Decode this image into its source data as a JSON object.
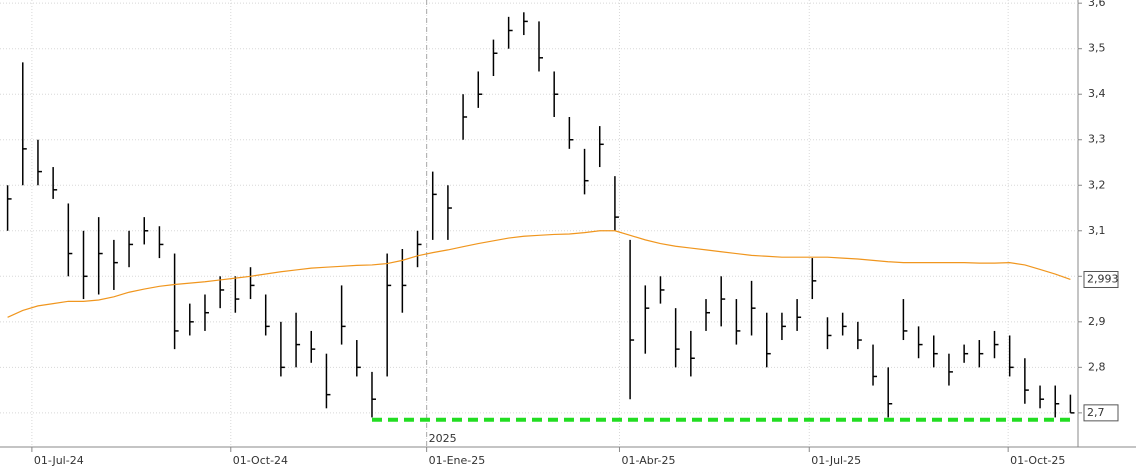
{
  "chart_data": {
    "type": "ohlc",
    "color": "#000000",
    "categories": [
      null,
      null,
      null,
      null,
      null,
      null,
      null,
      null,
      null,
      null,
      null,
      null,
      null,
      null,
      null,
      null,
      null,
      null,
      null,
      null,
      null,
      null,
      null,
      null,
      null,
      null,
      null,
      null,
      null,
      null,
      null,
      null,
      null,
      null,
      null,
      null,
      null,
      null,
      null,
      null,
      null,
      null,
      null,
      null,
      null,
      null,
      null,
      null,
      null,
      null,
      null,
      null,
      null,
      null,
      null,
      null,
      null,
      null,
      null,
      null,
      null,
      null,
      null,
      null,
      null,
      null,
      null,
      null,
      null,
      null,
      null
    ],
    "high": [
      3.2,
      3.47,
      3.3,
      3.24,
      3.16,
      3.1,
      3.13,
      3.08,
      3.1,
      3.13,
      3.11,
      3.05,
      2.94,
      2.96,
      3.0,
      3.0,
      3.02,
      2.96,
      2.9,
      2.92,
      2.88,
      2.83,
      2.98,
      2.86,
      2.79,
      3.05,
      3.06,
      3.1,
      3.23,
      3.2,
      3.4,
      3.45,
      3.52,
      3.57,
      3.58,
      3.56,
      3.45,
      3.35,
      3.28,
      3.33,
      3.22,
      3.08,
      2.98,
      3.0,
      2.93,
      2.88,
      2.95,
      3.0,
      2.95,
      2.99,
      2.92,
      2.92,
      2.95,
      3.04,
      2.91,
      2.92,
      2.9,
      2.85,
      2.8,
      2.95,
      2.89,
      2.87,
      2.83,
      2.85,
      2.86,
      2.88,
      2.87,
      2.82,
      2.76,
      2.76,
      2.74
    ],
    "low": [
      3.1,
      3.2,
      3.2,
      3.17,
      3.0,
      2.95,
      2.96,
      2.97,
      3.02,
      3.07,
      3.04,
      2.84,
      2.87,
      2.88,
      2.93,
      2.92,
      2.95,
      2.87,
      2.78,
      2.8,
      2.81,
      2.71,
      2.85,
      2.78,
      2.69,
      2.78,
      2.92,
      3.02,
      3.08,
      3.08,
      3.3,
      3.37,
      3.44,
      3.5,
      3.53,
      3.45,
      3.35,
      3.28,
      3.18,
      3.24,
      3.1,
      2.73,
      2.83,
      2.94,
      2.8,
      2.78,
      2.88,
      2.89,
      2.85,
      2.87,
      2.8,
      2.86,
      2.88,
      2.95,
      2.84,
      2.87,
      2.84,
      2.76,
      2.69,
      2.86,
      2.82,
      2.8,
      2.76,
      2.81,
      2.8,
      2.82,
      2.78,
      2.72,
      2.71,
      2.69,
      2.7
    ],
    "close": [
      3.17,
      3.28,
      3.23,
      3.19,
      3.05,
      3.0,
      3.05,
      3.03,
      3.07,
      3.1,
      3.07,
      2.88,
      2.9,
      2.92,
      2.97,
      2.95,
      2.98,
      2.89,
      2.8,
      2.85,
      2.84,
      2.74,
      2.89,
      2.8,
      2.73,
      2.98,
      2.98,
      3.07,
      3.18,
      3.15,
      3.35,
      3.4,
      3.49,
      3.54,
      3.56,
      3.48,
      3.4,
      3.3,
      3.21,
      3.29,
      3.13,
      2.86,
      2.93,
      2.97,
      2.84,
      2.82,
      2.92,
      2.95,
      2.88,
      2.93,
      2.83,
      2.89,
      2.91,
      2.99,
      2.87,
      2.89,
      2.86,
      2.78,
      2.72,
      2.88,
      2.85,
      2.83,
      2.79,
      2.83,
      2.83,
      2.85,
      2.8,
      2.75,
      2.73,
      2.72,
      2.7
    ],
    "ma": {
      "color": "#f0961e",
      "values": [
        2.91,
        2.925,
        2.935,
        2.94,
        2.945,
        2.945,
        2.948,
        2.955,
        2.965,
        2.972,
        2.978,
        2.982,
        2.985,
        2.988,
        2.992,
        2.996,
        3.0,
        3.005,
        3.01,
        3.014,
        3.018,
        3.02,
        3.022,
        3.024,
        3.025,
        3.028,
        3.035,
        3.045,
        3.052,
        3.058,
        3.065,
        3.072,
        3.078,
        3.084,
        3.088,
        3.09,
        3.092,
        3.093,
        3.096,
        3.1,
        3.1,
        3.09,
        3.08,
        3.072,
        3.066,
        3.062,
        3.058,
        3.054,
        3.05,
        3.046,
        3.044,
        3.042,
        3.042,
        3.042,
        3.042,
        3.04,
        3.038,
        3.035,
        3.032,
        3.03,
        3.03,
        3.03,
        3.03,
        3.03,
        3.029,
        3.029,
        3.03,
        3.025,
        3.015,
        3.005,
        2.993
      ]
    },
    "support": {
      "value": 2.685,
      "start": 24,
      "end": 70,
      "color": "#22dd22"
    },
    "last_labels": [
      {
        "value": 2.993,
        "label": "2,993"
      },
      {
        "value": 2.7,
        "label": "2,7"
      }
    ],
    "ylim": [
      2.625,
      3.607
    ],
    "yticks": [
      {
        "value": 2.7,
        "label": "2,7"
      },
      {
        "value": 2.8,
        "label": "2,8"
      },
      {
        "value": 2.9,
        "label": "2,9"
      },
      {
        "value": 3.0,
        "label": "3"
      },
      {
        "value": 3.1,
        "label": "3,1"
      },
      {
        "value": 3.2,
        "label": "3,2"
      },
      {
        "value": 3.3,
        "label": "3,3"
      },
      {
        "value": 3.4,
        "label": "3,4"
      },
      {
        "value": 3.5,
        "label": "3,5"
      },
      {
        "value": 3.6,
        "label": "3,6"
      }
    ],
    "xticks": [
      {
        "value": 1.6,
        "label": "01-Jul-24"
      },
      {
        "value": 14.7,
        "label": "01-Oct-24"
      },
      {
        "value": 27.6,
        "label": "01-Ene-25"
      },
      {
        "value": 40.3,
        "label": "01-Abr-25"
      },
      {
        "value": 52.8,
        "label": "01-Jul-25"
      },
      {
        "value": 65.9,
        "label": "01-Oct-25"
      }
    ],
    "year_marker": {
      "value": 27.6,
      "label": "2025"
    },
    "grid": true
  }
}
